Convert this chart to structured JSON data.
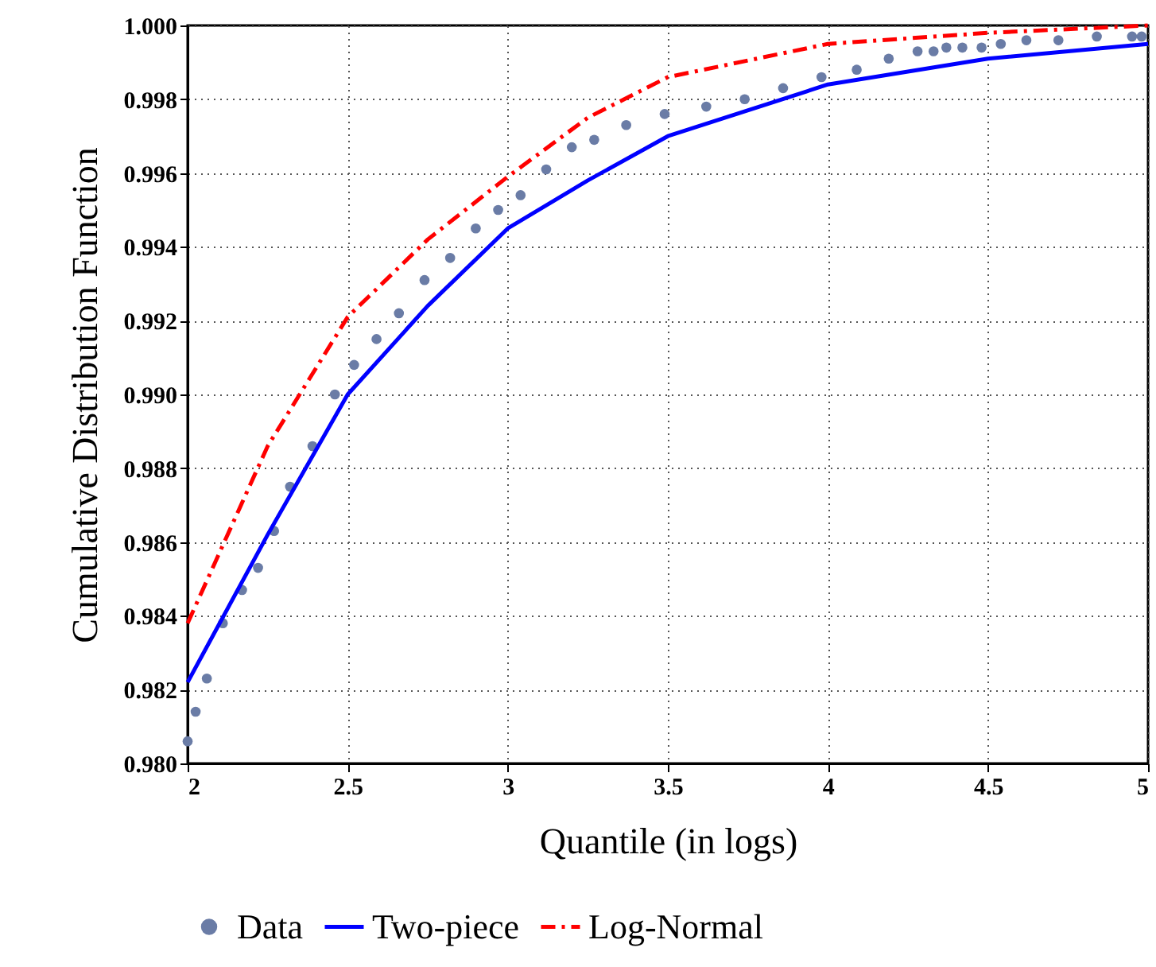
{
  "chart_data": {
    "type": "line",
    "xlabel": "Quantile (in logs)",
    "ylabel": "Cumulative Distribution Function",
    "xlim": [
      2,
      5
    ],
    "xticks": [
      2,
      2.5,
      3,
      3.5,
      4,
      4.5,
      5
    ],
    "ylim": [
      0.98,
      1.0
    ],
    "yticks": [
      {
        "value": 0.98,
        "label": "0.980"
      },
      {
        "value": 0.982,
        "label": "0.982"
      },
      {
        "value": 0.984,
        "label": "0.984"
      },
      {
        "value": 0.986,
        "label": "0.986"
      },
      {
        "value": 0.988,
        "label": "0.988"
      },
      {
        "value": 0.99,
        "label": "0.990"
      },
      {
        "value": 0.992,
        "label": "0.992"
      },
      {
        "value": 0.994,
        "label": "0.994"
      },
      {
        "value": 0.996,
        "label": "0.996"
      },
      {
        "value": 0.998,
        "label": "0.998"
      },
      {
        "value": 1.0,
        "label": "1.000"
      }
    ],
    "grid": true,
    "legend": "bottom",
    "series": [
      {
        "name": "Data",
        "type": "scatter",
        "marker": "circle",
        "color": "#6a7ca6",
        "x": [
          2.0,
          2.025,
          2.06,
          2.11,
          2.17,
          2.22,
          2.27,
          2.32,
          2.39,
          2.46,
          2.52,
          2.59,
          2.66,
          2.74,
          2.82,
          2.9,
          2.97,
          3.04,
          3.12,
          3.2,
          3.27,
          3.37,
          3.49,
          3.62,
          3.74,
          3.86,
          3.98,
          4.09,
          4.19,
          4.28,
          4.33,
          4.37,
          4.42,
          4.48,
          4.54,
          4.62,
          4.72,
          4.84,
          4.95,
          4.98
        ],
        "values": [
          0.9806,
          0.9814,
          0.9823,
          0.9838,
          0.9847,
          0.9853,
          0.9863,
          0.9875,
          0.9886,
          0.99,
          0.9908,
          0.9915,
          0.9922,
          0.9931,
          0.9937,
          0.9945,
          0.995,
          0.9954,
          0.9961,
          0.9967,
          0.9969,
          0.9973,
          0.9976,
          0.9978,
          0.998,
          0.9983,
          0.9986,
          0.9988,
          0.9991,
          0.9993,
          0.9993,
          0.9994,
          0.9994,
          0.9994,
          0.9995,
          0.9996,
          0.9996,
          0.9997,
          0.9997,
          0.9997
        ]
      },
      {
        "name": "Two-piece",
        "type": "line",
        "line_style": "solid",
        "color": "#0000ff",
        "x": [
          2,
          2.25,
          2.5,
          2.75,
          3,
          3.25,
          3.5,
          4,
          4.5,
          5
        ],
        "values": [
          0.9822,
          0.9862,
          0.99,
          0.9924,
          0.9945,
          0.9958,
          0.997,
          0.9984,
          0.9991,
          0.9995
        ]
      },
      {
        "name": "Log-Normal",
        "type": "line",
        "line_style": "dashed",
        "color": "#ff0000",
        "x": [
          2,
          2.25,
          2.5,
          2.75,
          3,
          3.25,
          3.5,
          4,
          4.5,
          5
        ],
        "values": [
          0.9838,
          0.9886,
          0.9921,
          0.9942,
          0.9959,
          0.9975,
          0.9986,
          0.9995,
          0.9998,
          1.0
        ]
      }
    ]
  }
}
